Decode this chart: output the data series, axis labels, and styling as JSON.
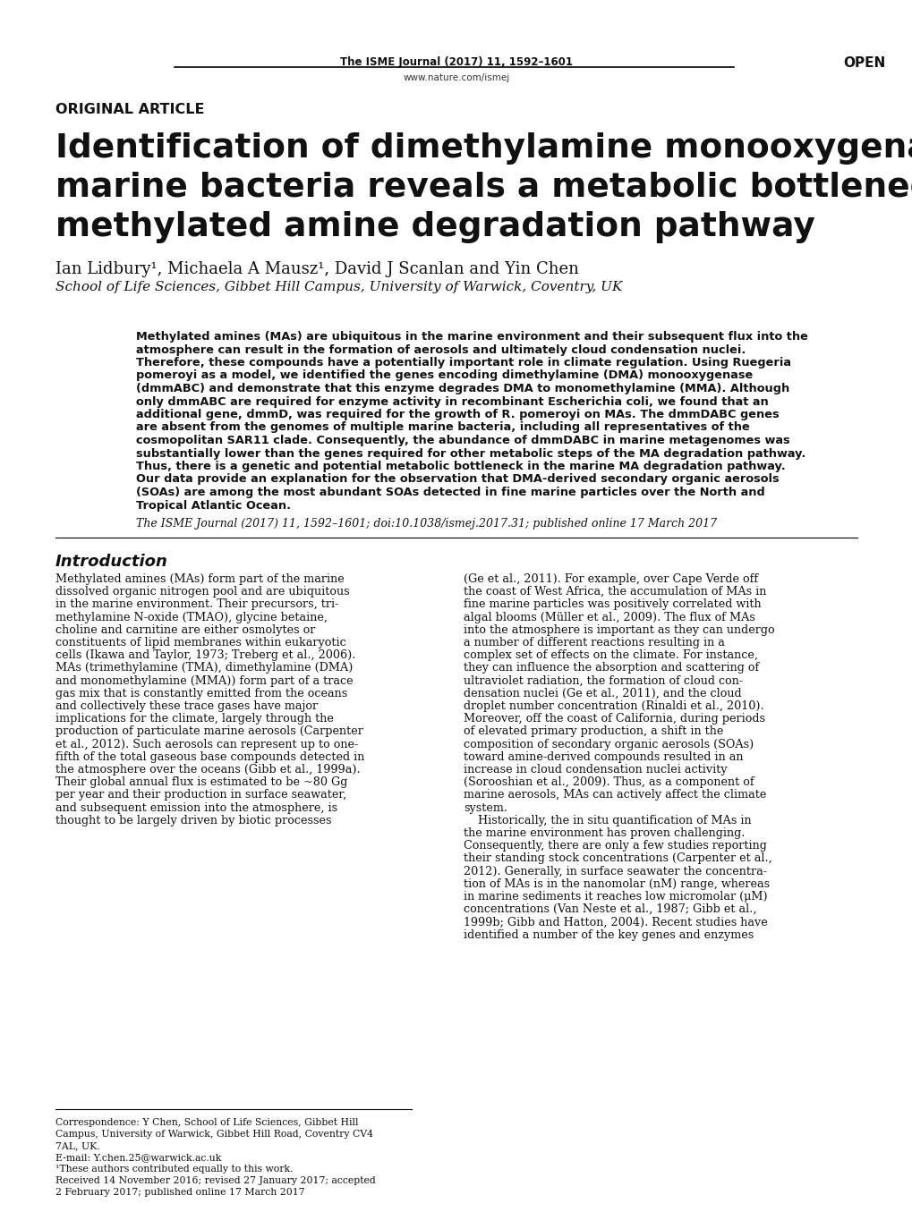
{
  "background_color": "#ffffff",
  "journal_header": "The ISME Journal (2017) 11, 1592–1601",
  "journal_url": "www.nature.com/ismej",
  "open_label": "OPEN",
  "section_label": "ORIGINAL ARTICLE",
  "title_line1": "Identification of dimethylamine monooxygenase in",
  "title_line2": "marine bacteria reveals a metabolic bottleneck in the",
  "title_line3": "methylated amine degradation pathway",
  "authors": "Ian Lidbury¹, Michaela A Mausz¹, David J Scanlan and Yin Chen",
  "affiliation": "School of Life Sciences, Gibbet Hill Campus, University of Warwick, Coventry, UK",
  "abstract_text": "Methylated amines (MAs) are ubiquitous in the marine environment and their subsequent flux into the atmosphere can result in the formation of aerosols and ultimately cloud condensation nuclei. Therefore, these compounds have a potentially important role in climate regulation. Using Ruegeria pomeroyi as a model, we identified the genes encoding dimethylamine (DMA) monooxygenase (dmmABC) and demonstrate that this enzyme degrades DMA to monomethylamine (MMA). Although only dmmABC are required for enzyme activity in recombinant Escherichia coli, we found that an additional gene, dmmD, was required for the growth of R. pomeroyi on MAs. The dmmDABC genes are absent from the genomes of multiple marine bacteria, including all representatives of the cosmopolitan SAR11 clade. Consequently, the abundance of dmmDABC in marine metagenomes was substantially lower than the genes required for other metabolic steps of the MA degradation pathway. Thus, there is a genetic and potential metabolic bottleneck in the marine MA degradation pathway. Our data provide an explanation for the observation that DMA-derived secondary organic aerosols (SOAs) are among the most abundant SOAs detected in fine marine particles over the North and Tropical Atlantic Ocean.",
  "citation_line": "The ISME Journal (2017) 11, 1592–1601; doi:10.1038/ismej.2017.31; published online 17 March 2017",
  "intro_heading": "Introduction",
  "intro_col1_lines": [
    "Methylated amines (MAs) form part of the marine",
    "dissolved organic nitrogen pool and are ubiquitous",
    "in the marine environment. Their precursors, tri-",
    "methylamine N-oxide (TMAO), glycine betaine,",
    "choline and carnitine are either osmolytes or",
    "constituents of lipid membranes within eukaryotic",
    "cells (Ikawa and Taylor, 1973; Treberg et al., 2006).",
    "MAs (trimethylamine (TMA), dimethylamine (DMA)",
    "and monomethylamine (MMA)) form part of a trace",
    "gas mix that is constantly emitted from the oceans",
    "and collectively these trace gases have major",
    "implications for the climate, largely through the",
    "production of particulate marine aerosols (Carpenter",
    "et al., 2012). Such aerosols can represent up to one-",
    "fifth of the total gaseous base compounds detected in",
    "the atmosphere over the oceans (Gibb et al., 1999a).",
    "Their global annual flux is estimated to be ~80 Gg",
    "per year and their production in surface seawater,",
    "and subsequent emission into the atmosphere, is",
    "thought to be largely driven by biotic processes"
  ],
  "intro_col2_lines": [
    "(Ge et al., 2011). For example, over Cape Verde off",
    "the coast of West Africa, the accumulation of MAs in",
    "fine marine particles was positively correlated with",
    "algal blooms (Müller et al., 2009). The flux of MAs",
    "into the atmosphere is important as they can undergo",
    "a number of different reactions resulting in a",
    "complex set of effects on the climate. For instance,",
    "they can influence the absorption and scattering of",
    "ultraviolet radiation, the formation of cloud con-",
    "densation nuclei (Ge et al., 2011), and the cloud",
    "droplet number concentration (Rinaldi et al., 2010).",
    "Moreover, off the coast of California, during periods",
    "of elevated primary production, a shift in the",
    "composition of secondary organic aerosols (SOAs)",
    "toward amine-derived compounds resulted in an",
    "increase in cloud condensation nuclei activity",
    "(Sorooshian et al., 2009). Thus, as a component of",
    "marine aerosols, MAs can actively affect the climate",
    "system.",
    "    Historically, the in situ quantification of MAs in",
    "the marine environment has proven challenging.",
    "Consequently, there are only a few studies reporting",
    "their standing stock concentrations (Carpenter et al.,",
    "2012). Generally, in surface seawater the concentra-",
    "tion of MAs is in the nanomolar (nM) range, whereas",
    "in marine sediments it reaches low micromolar (μM)",
    "concentrations (Van Neste et al., 1987; Gibb et al.,",
    "1999b; Gibb and Hatton, 2004). Recent studies have",
    "identified a number of the key genes and enzymes"
  ],
  "footnote_lines": [
    "Correspondence: Y Chen, School of Life Sciences, Gibbet Hill",
    "Campus, University of Warwick, Gibbet Hill Road, Coventry CV4",
    "7AL, UK.",
    "E-mail: Y.chen.25@warwick.ac.uk",
    "¹These authors contributed equally to this work.",
    "Received 14 November 2016; revised 27 January 2017; accepted",
    "2 February 2017; published online 17 March 2017"
  ],
  "abstract_lines": [
    "Methylated amines (MAs) are ubiquitous in the marine environment and their subsequent flux into the",
    "atmosphere can result in the formation of aerosols and ultimately cloud condensation nuclei.",
    "Therefore, these compounds have a potentially important role in climate regulation. Using Ruegeria",
    "pomeroyi as a model, we identified the genes encoding dimethylamine (DMA) monooxygenase",
    "(dmmABC) and demonstrate that this enzyme degrades DMA to monomethylamine (MMA). Although",
    "only dmmABC are required for enzyme activity in recombinant Escherichia coli, we found that an",
    "additional gene, dmmD, was required for the growth of R. pomeroyi on MAs. The dmmDABC genes",
    "are absent from the genomes of multiple marine bacteria, including all representatives of the",
    "cosmopolitan SAR11 clade. Consequently, the abundance of dmmDABC in marine metagenomes was",
    "substantially lower than the genes required for other metabolic steps of the MA degradation pathway.",
    "Thus, there is a genetic and potential metabolic bottleneck in the marine MA degradation pathway.",
    "Our data provide an explanation for the observation that DMA-derived secondary organic aerosols",
    "(SOAs) are among the most abundant SOAs detected in fine marine particles over the North and",
    "Tropical Atlantic Ocean."
  ]
}
